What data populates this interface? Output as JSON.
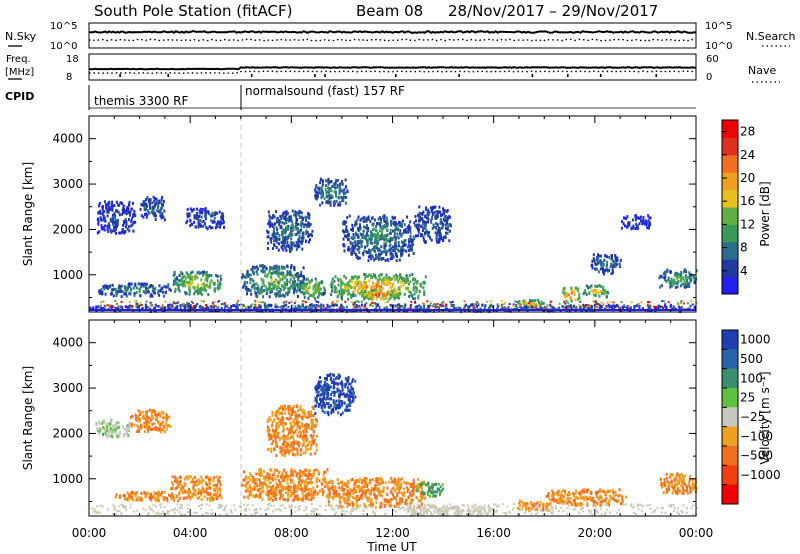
{
  "header": {
    "title": "South Pole Station (fitACF)",
    "beam": "Beam 08",
    "dates": "28/Nov/2017 – 29/Nov/2017"
  },
  "noise_panel": {
    "left_label": "N.Sky",
    "left_ticks": [
      "10^5",
      "10^0"
    ],
    "right_label": "N.Search",
    "right_ticks": [
      "10^5",
      "10^0"
    ]
  },
  "freq_panel": {
    "left_label_1": "Freq.",
    "left_label_2": "[MHz]",
    "left_ticks": [
      "18",
      "8"
    ],
    "right_label": "Nave",
    "right_ticks": [
      "60",
      "0"
    ]
  },
  "cpid_panel": {
    "label": "CPID",
    "programs": [
      "themis 3300 RF",
      "normalsound (fast) 157 RF"
    ]
  },
  "power_panel": {
    "ylabel": "Slant Range [km]",
    "yticks": [
      "4000",
      "3000",
      "2000",
      "1000"
    ],
    "colorbar_label": "Power [dB]",
    "colorbar_ticks": [
      "28",
      "24",
      "20",
      "16",
      "12",
      "8",
      "4"
    ],
    "colors": [
      "#2020f0",
      "#203aa0",
      "#2b6e8a",
      "#3a9a5a",
      "#5fb040",
      "#e6c020",
      "#f0a020",
      "#f07020",
      "#e03020",
      "#f00000"
    ]
  },
  "velocity_panel": {
    "ylabel": "Slant Range [km]",
    "yticks": [
      "4000",
      "3000",
      "2000",
      "1000"
    ],
    "colorbar_label": "Velocity [m s⁻¹]",
    "colorbar_ticks": [
      "1000",
      "500",
      "100",
      "25",
      "−25",
      "−100",
      "−500",
      "−1000"
    ],
    "colors": [
      "#1f3fb0",
      "#2a64a8",
      "#3a8f70",
      "#60c040",
      "#c8c8c0",
      "#f0a020",
      "#f07020",
      "#f04010",
      "#f00000"
    ]
  },
  "xaxis": {
    "ticks": [
      "00:00",
      "04:00",
      "08:00",
      "12:00",
      "16:00",
      "20:00",
      "00:00"
    ],
    "label": "Time UT"
  },
  "chart_data": {
    "type": "heatmap",
    "title": "South Pole Station (fitACF)",
    "xlabel": "Time UT",
    "ylabel": "Slant Range [km]",
    "x_range_hours": [
      0,
      24
    ],
    "y_range_km": [
      180,
      4500
    ],
    "cpid_change_hour": 6.0,
    "power_colorbar_range_db": [
      0,
      30
    ],
    "velocity_colorbar_levels": [
      1000,
      500,
      100,
      25,
      -25,
      -100,
      -500,
      -1000
    ],
    "power_echo_regions": [
      {
        "t0": 0.3,
        "t1": 1.8,
        "r0": 1900,
        "r1": 2600,
        "db": 6
      },
      {
        "t0": 2.0,
        "t1": 3.0,
        "r0": 2200,
        "r1": 2700,
        "db": 8
      },
      {
        "t0": 3.8,
        "t1": 5.3,
        "r0": 2000,
        "r1": 2450,
        "db": 6
      },
      {
        "t0": 0.0,
        "t1": 24.0,
        "r0": 180,
        "r1": 330,
        "db": 9
      },
      {
        "t0": 0.3,
        "t1": 3.2,
        "r0": 500,
        "r1": 800,
        "db": 10
      },
      {
        "t0": 3.3,
        "t1": 5.2,
        "r0": 550,
        "r1": 1050,
        "db": 18
      },
      {
        "t0": 6.0,
        "t1": 8.5,
        "r0": 500,
        "r1": 1200,
        "db": 14
      },
      {
        "t0": 7.0,
        "t1": 8.8,
        "r0": 1500,
        "r1": 2400,
        "db": 9
      },
      {
        "t0": 8.2,
        "t1": 9.3,
        "r0": 450,
        "r1": 900,
        "db": 18
      },
      {
        "t0": 8.9,
        "t1": 10.2,
        "r0": 2500,
        "r1": 3100,
        "db": 10
      },
      {
        "t0": 9.5,
        "t1": 13.3,
        "r0": 450,
        "r1": 1000,
        "db": 22
      },
      {
        "t0": 10.7,
        "t1": 12.3,
        "r0": 450,
        "r1": 650,
        "db": 27
      },
      {
        "t0": 10.0,
        "t1": 12.8,
        "r0": 1300,
        "r1": 2300,
        "db": 10
      },
      {
        "t0": 12.8,
        "t1": 14.3,
        "r0": 1700,
        "r1": 2500,
        "db": 8
      },
      {
        "t0": 16.8,
        "t1": 18.0,
        "r0": 300,
        "r1": 430,
        "db": 19
      },
      {
        "t0": 18.7,
        "t1": 19.4,
        "r0": 400,
        "r1": 700,
        "db": 27
      },
      {
        "t0": 19.5,
        "t1": 20.5,
        "r0": 500,
        "r1": 750,
        "db": 20
      },
      {
        "t0": 19.8,
        "t1": 21.0,
        "r0": 1000,
        "r1": 1450,
        "db": 9
      },
      {
        "t0": 22.5,
        "t1": 24.0,
        "r0": 700,
        "r1": 1100,
        "db": 13
      },
      {
        "t0": 21.0,
        "t1": 22.2,
        "r0": 2000,
        "r1": 2300,
        "db": 5
      }
    ],
    "velocity_echo_regions": [
      {
        "t0": 0.2,
        "t1": 1.6,
        "r0": 1900,
        "r1": 2300,
        "v": 25
      },
      {
        "t0": 1.6,
        "t1": 3.2,
        "r0": 2000,
        "r1": 2500,
        "v": -100
      },
      {
        "t0": 1.0,
        "t1": 5.2,
        "r0": 500,
        "r1": 700,
        "v": -100
      },
      {
        "t0": 3.2,
        "t1": 5.2,
        "r0": 650,
        "r1": 1050,
        "v": -100
      },
      {
        "t0": 6.0,
        "t1": 9.5,
        "r0": 500,
        "r1": 1200,
        "v": -100
      },
      {
        "t0": 7.0,
        "t1": 9.0,
        "r0": 1500,
        "r1": 2600,
        "v": -100
      },
      {
        "t0": 8.9,
        "t1": 10.5,
        "r0": 2400,
        "r1": 3300,
        "v": 1000
      },
      {
        "t0": 9.4,
        "t1": 13.3,
        "r0": 350,
        "r1": 1000,
        "v": -100
      },
      {
        "t0": 12.9,
        "t1": 14.0,
        "r0": 600,
        "r1": 900,
        "v": 100
      },
      {
        "t0": 12.5,
        "t1": 16.0,
        "r0": 180,
        "r1": 400,
        "v": 0
      },
      {
        "t0": 16.8,
        "t1": 18.2,
        "r0": 280,
        "r1": 500,
        "v": -100
      },
      {
        "t0": 18.0,
        "t1": 21.2,
        "r0": 400,
        "r1": 750,
        "v": -100
      },
      {
        "t0": 22.5,
        "t1": 24.0,
        "r0": 650,
        "r1": 1100,
        "v": -100
      }
    ]
  }
}
